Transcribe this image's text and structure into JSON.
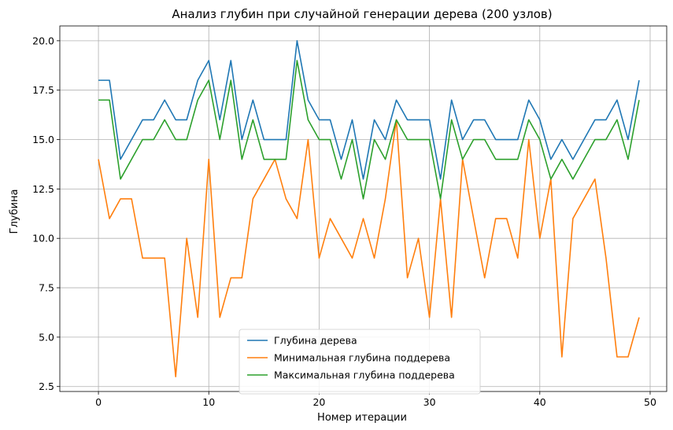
{
  "chart_data": {
    "type": "line",
    "title": "Анализ глубин при случайной генерации дерева (200 узлов)",
    "xlabel": "Номер итерации",
    "ylabel": "Глубина",
    "xlim": [
      -3.5,
      51.5
    ],
    "ylim": [
      2.25,
      20.75
    ],
    "xticks": [
      0,
      10,
      20,
      30,
      40,
      50
    ],
    "xtick_labels": [
      "0",
      "10",
      "20",
      "30",
      "40",
      "50"
    ],
    "yticks": [
      2.5,
      5.0,
      7.5,
      10.0,
      12.5,
      15.0,
      17.5,
      20.0
    ],
    "ytick_labels": [
      "2.5",
      "5.0",
      "7.5",
      "10.0",
      "12.5",
      "15.0",
      "17.5",
      "20.0"
    ],
    "grid": true,
    "legend_position": "bottom-center",
    "x": [
      0,
      1,
      2,
      3,
      4,
      5,
      6,
      7,
      8,
      9,
      10,
      11,
      12,
      13,
      14,
      15,
      16,
      17,
      18,
      19,
      20,
      21,
      22,
      23,
      24,
      25,
      26,
      27,
      28,
      29,
      30,
      31,
      32,
      33,
      34,
      35,
      36,
      37,
      38,
      39,
      40,
      41,
      42,
      43,
      44,
      45,
      46,
      47,
      48,
      49
    ],
    "series": [
      {
        "name": "Глубина дерева",
        "color": "#1f77b4",
        "values": [
          18,
          18,
          14,
          15,
          16,
          16,
          17,
          16,
          16,
          18,
          19,
          16,
          19,
          15,
          17,
          15,
          15,
          15,
          20,
          17,
          16,
          16,
          14,
          16,
          13,
          16,
          15,
          17,
          16,
          16,
          16,
          13,
          17,
          15,
          16,
          16,
          15,
          15,
          15,
          17,
          16,
          14,
          15,
          14,
          15,
          16,
          16,
          17,
          15,
          18
        ]
      },
      {
        "name": "Минимальная глубина поддерева",
        "color": "#ff7f0e",
        "values": [
          14,
          11,
          12,
          12,
          9,
          9,
          9,
          3,
          10,
          6,
          14,
          6,
          8,
          8,
          12,
          13,
          14,
          12,
          11,
          15,
          9,
          11,
          10,
          9,
          11,
          9,
          12,
          16,
          8,
          10,
          6,
          12,
          6,
          14,
          11,
          8,
          11,
          11,
          9,
          15,
          10,
          13,
          4,
          11,
          12,
          13,
          9,
          4,
          4,
          6
        ]
      },
      {
        "name": "Максимальная глубина поддерева",
        "color": "#2ca02c",
        "values": [
          17,
          17,
          13,
          14,
          15,
          15,
          16,
          15,
          15,
          17,
          18,
          15,
          18,
          14,
          16,
          14,
          14,
          14,
          19,
          16,
          15,
          15,
          13,
          15,
          12,
          15,
          14,
          16,
          15,
          15,
          15,
          12,
          16,
          14,
          15,
          15,
          14,
          14,
          14,
          16,
          15,
          13,
          14,
          13,
          14,
          15,
          15,
          16,
          14,
          17
        ]
      }
    ]
  }
}
